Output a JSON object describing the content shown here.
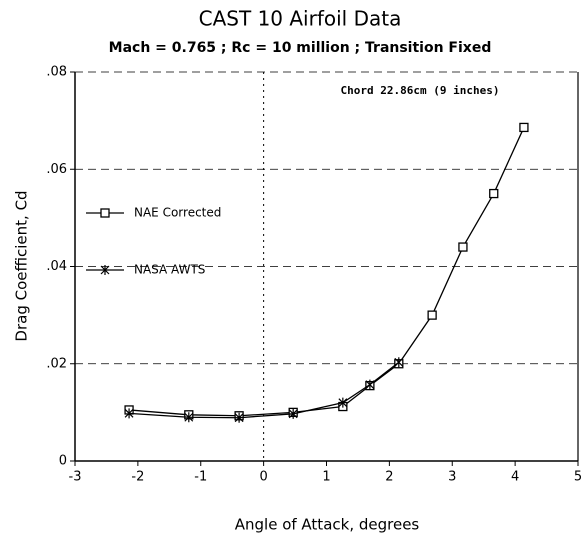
{
  "chart_data": {
    "type": "line",
    "title": "CAST 10 Airfoil Data",
    "subtitle": "Mach = 0.765 ; Rc = 10 million ; Transition Fixed",
    "x_label": "Angle of Attack, degrees",
    "y_label": "Drag Coefficient, Cd",
    "annotation": "Chord 22.86cm (9 inches)",
    "xlim": [
      -3,
      5
    ],
    "xticks": [
      -3,
      -2,
      -1,
      0,
      1,
      2,
      3,
      4,
      5
    ],
    "ylim": [
      0,
      0.08
    ],
    "yticks": [
      0,
      {
        "value": 0.02,
        "label": ".02"
      },
      {
        "value": 0.04,
        "label": ".04"
      },
      {
        "value": 0.06,
        "label": ".06"
      },
      {
        "value": 0.08,
        "label": ".08"
      }
    ],
    "grid": true,
    "legend": "left",
    "series": [
      {
        "name": "NAE Corrected",
        "color": "#000000",
        "marker": "square",
        "x": [
          -2.14,
          -1.19,
          -0.39,
          0.47,
          1.26,
          1.69,
          2.15,
          2.68,
          3.17,
          3.66,
          4.14
        ],
        "values": [
          0.0105,
          0.0095,
          0.0093,
          0.01,
          0.0112,
          0.0155,
          0.02,
          0.03,
          0.044,
          0.055,
          0.0686
        ]
      },
      {
        "name": "NASA AWTS",
        "color": "#000000",
        "marker": "x",
        "x": [
          -2.14,
          -1.19,
          -0.39,
          0.47,
          1.26,
          1.69,
          2.15
        ],
        "values": [
          0.0098,
          0.009,
          0.0089,
          0.0097,
          0.012,
          0.0157,
          0.0203
        ]
      }
    ]
  }
}
